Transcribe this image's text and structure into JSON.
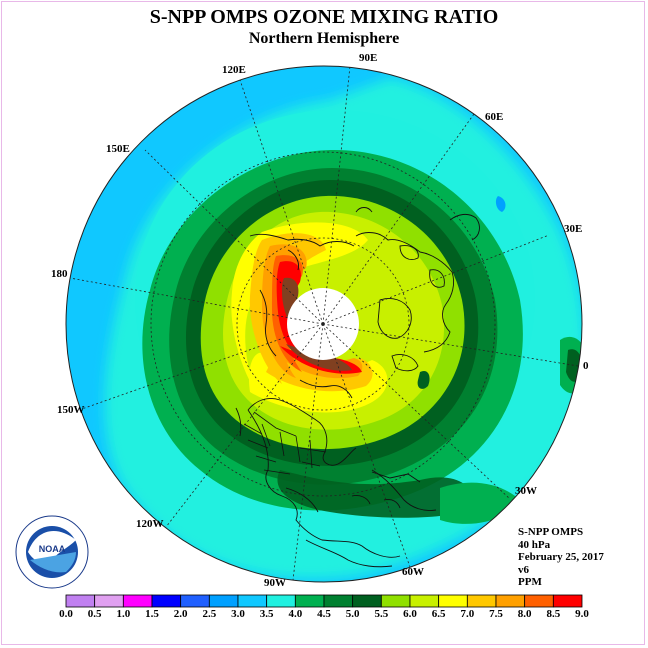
{
  "header": {
    "title": "S-NPP OMPS OZONE MIXING RATIO",
    "subtitle": "Northern Hemisphere"
  },
  "longitude_labels": [
    {
      "id": "90E",
      "text": "90E"
    },
    {
      "id": "60E",
      "text": "60E"
    },
    {
      "id": "30E",
      "text": "30E"
    },
    {
      "id": "0",
      "text": "0"
    },
    {
      "id": "30W",
      "text": "30W"
    },
    {
      "id": "60W",
      "text": "60W"
    },
    {
      "id": "90W",
      "text": "90W"
    },
    {
      "id": "120W",
      "text": "120W"
    },
    {
      "id": "150W",
      "text": "150W"
    },
    {
      "id": "180",
      "text": "180"
    },
    {
      "id": "150E",
      "text": "150E"
    },
    {
      "id": "120E",
      "text": "120E"
    }
  ],
  "info": {
    "instrument": "S-NPP OMPS",
    "level": "40 hPa",
    "date": "February 25, 2017",
    "version": "v6",
    "unit": "PPM"
  },
  "logo": {
    "text": "NOAA",
    "ring_text": "NATIONAL OCEANIC AND ATMOSPHERIC ADMINISTRATION · U.S. DEPARTMENT OF COMMERCE"
  },
  "colorbar": {
    "ticks": [
      "0.0",
      "0.5",
      "1.0",
      "1.5",
      "2.0",
      "2.5",
      "3.0",
      "3.5",
      "4.0",
      "4.5",
      "5.0",
      "5.5",
      "6.0",
      "6.5",
      "7.0",
      "7.5",
      "8.0",
      "8.5",
      "9.0"
    ],
    "colors": [
      "#c080f0",
      "#e0a0f0",
      "#ff00ff",
      "#0000ff",
      "#2060ff",
      "#00a0ff",
      "#10c8ff",
      "#20f0e0",
      "#00b050",
      "#008030",
      "#006020",
      "#90e000",
      "#c8f000",
      "#ffff00",
      "#ffc800",
      "#ffa000",
      "#ff6000",
      "#ff0000",
      "#804020"
    ]
  }
}
